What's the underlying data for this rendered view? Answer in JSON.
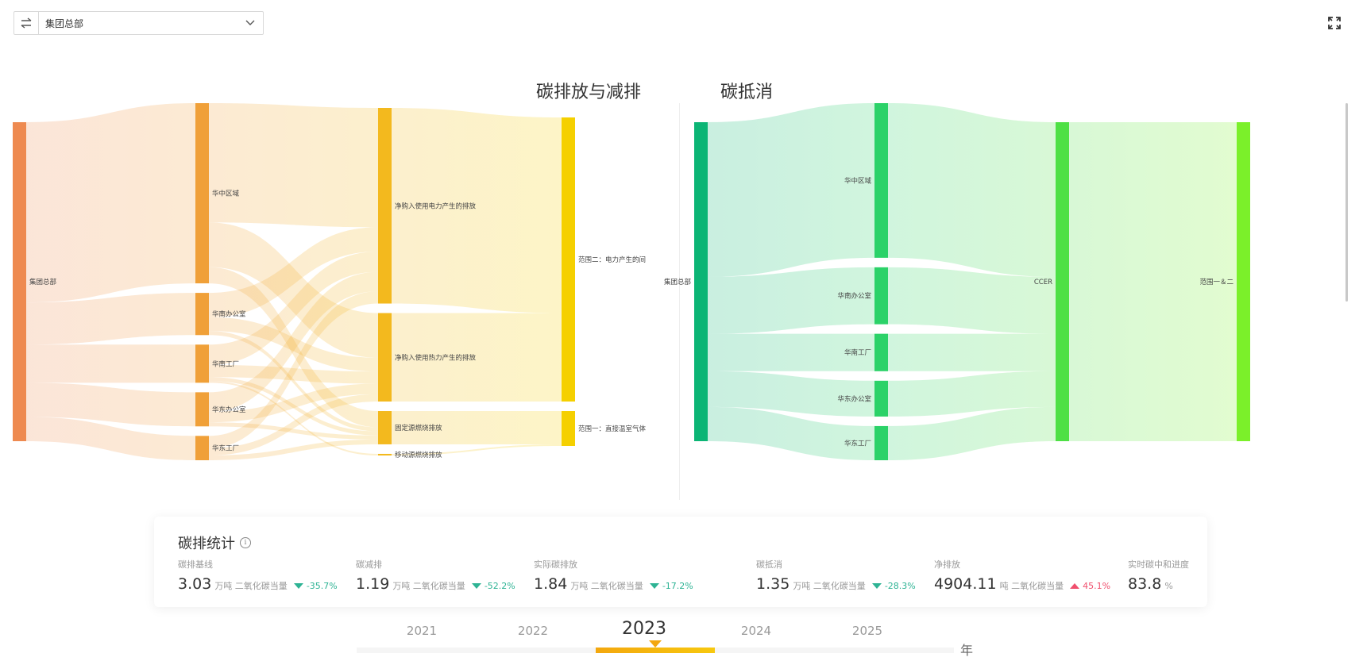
{
  "header": {
    "swap_icon": "swap-arrows-icon",
    "org_select": {
      "value": "集团总部",
      "icon": "chevron-down-icon"
    },
    "fullscreen_icon": "fullscreen-expand-icon"
  },
  "sections": {
    "emission_title": "碳排放与减排",
    "offset_title": "碳抵消"
  },
  "chart_data": [
    {
      "type": "sankey",
      "title": "碳排放与减排",
      "colors": {
        "level0": "#ee8a50",
        "level1": "#f0a038",
        "level2": "#f3b91e",
        "level3": "#f5d000"
      },
      "nodes": [
        {
          "id": "root",
          "label": "集团总部",
          "level": 0
        },
        {
          "id": "hz",
          "label": "华中区域",
          "level": 1
        },
        {
          "id": "hnb",
          "label": "华南办公室",
          "level": 1
        },
        {
          "id": "hng",
          "label": "华南工厂",
          "level": 1
        },
        {
          "id": "hdb",
          "label": "华东办公室",
          "level": 1
        },
        {
          "id": "hdg",
          "label": "华东工厂",
          "level": 1
        },
        {
          "id": "elec",
          "label": "净购入使用电力产生的排放",
          "level": 2
        },
        {
          "id": "heat",
          "label": "净购入使用热力产生的排放",
          "level": 2
        },
        {
          "id": "fix",
          "label": "固定源燃烧排放",
          "level": 2
        },
        {
          "id": "mob",
          "label": "移动源燃烧排放",
          "level": 2
        },
        {
          "id": "s2",
          "label": "范围二：电力产生的间",
          "level": 3
        },
        {
          "id": "s1",
          "label": "范围一：直接温室气体",
          "level": 3
        }
      ],
      "links": [
        {
          "source": "root",
          "target": "hz",
          "value": 222
        },
        {
          "source": "root",
          "target": "hnb",
          "value": 52
        },
        {
          "source": "root",
          "target": "hng",
          "value": 47
        },
        {
          "source": "root",
          "target": "hdb",
          "value": 42
        },
        {
          "source": "root",
          "target": "hdg",
          "value": 30
        },
        {
          "source": "hz",
          "target": "elec",
          "value": 147
        },
        {
          "source": "hz",
          "target": "heat",
          "value": 55
        },
        {
          "source": "hz",
          "target": "fix",
          "value": 20
        },
        {
          "source": "hnb",
          "target": "elec",
          "value": 30
        },
        {
          "source": "hnb",
          "target": "heat",
          "value": 17
        },
        {
          "source": "hnb",
          "target": "fix",
          "value": 5
        },
        {
          "source": "hng",
          "target": "elec",
          "value": 25
        },
        {
          "source": "hng",
          "target": "heat",
          "value": 15
        },
        {
          "source": "hng",
          "target": "fix",
          "value": 5
        },
        {
          "source": "hng",
          "target": "mob",
          "value": 2
        },
        {
          "source": "hdb",
          "target": "elec",
          "value": 24
        },
        {
          "source": "hdb",
          "target": "heat",
          "value": 13
        },
        {
          "source": "hdb",
          "target": "fix",
          "value": 5
        },
        {
          "source": "hdg",
          "target": "elec",
          "value": 15
        },
        {
          "source": "hdg",
          "target": "heat",
          "value": 9
        },
        {
          "source": "hdg",
          "target": "fix",
          "value": 6
        },
        {
          "source": "elec",
          "target": "s2",
          "value": 241
        },
        {
          "source": "heat",
          "target": "s2",
          "value": 109
        },
        {
          "source": "fix",
          "target": "s1",
          "value": 41
        },
        {
          "source": "mob",
          "target": "s1",
          "value": 2
        }
      ]
    },
    {
      "type": "sankey",
      "title": "碳抵消",
      "colors": {
        "level0": "#0bb575",
        "level1": "#2bd268",
        "level2": "#4ee045",
        "level3": "#7bf02a"
      },
      "nodes": [
        {
          "id": "root",
          "label": "集团总部",
          "level": 0
        },
        {
          "id": "hz",
          "label": "华中区域",
          "level": 1
        },
        {
          "id": "hnb",
          "label": "华南办公室",
          "level": 1
        },
        {
          "id": "hng",
          "label": "华南工厂",
          "level": 1
        },
        {
          "id": "hdb",
          "label": "华东办公室",
          "level": 1
        },
        {
          "id": "hdg",
          "label": "华东工厂",
          "level": 1
        },
        {
          "id": "ccer",
          "label": "CCER",
          "level": 2
        },
        {
          "id": "scope",
          "label": "范围一＆二",
          "level": 3
        }
      ],
      "links": [
        {
          "source": "root",
          "target": "hz",
          "value": 190
        },
        {
          "source": "root",
          "target": "hnb",
          "value": 70
        },
        {
          "source": "root",
          "target": "hng",
          "value": 46
        },
        {
          "source": "root",
          "target": "hdb",
          "value": 44
        },
        {
          "source": "root",
          "target": "hdg",
          "value": 42
        },
        {
          "source": "hz",
          "target": "ccer",
          "value": 190
        },
        {
          "source": "hnb",
          "target": "ccer",
          "value": 70
        },
        {
          "source": "hng",
          "target": "ccer",
          "value": 46
        },
        {
          "source": "hdb",
          "target": "ccer",
          "value": 44
        },
        {
          "source": "hdg",
          "target": "ccer",
          "value": 42
        },
        {
          "source": "ccer",
          "target": "scope",
          "value": 392
        }
      ]
    }
  ],
  "stats": {
    "title": "碳排统计",
    "info_icon": "info-circle-icon",
    "metrics": [
      {
        "label": "碳排基线",
        "value": "3.03",
        "unit": "万吨 二氧化碳当量",
        "trend": "-35.7%",
        "direction": "down"
      },
      {
        "label": "碳减排",
        "value": "1.19",
        "unit": "万吨 二氧化碳当量",
        "trend": "-52.2%",
        "direction": "down"
      },
      {
        "label": "实际碳排放",
        "value": "1.84",
        "unit": "万吨 二氧化碳当量",
        "trend": "-17.2%",
        "direction": "down"
      },
      {
        "label": "碳抵消",
        "value": "1.35",
        "unit": "万吨 二氧化碳当量",
        "trend": "-28.3%",
        "direction": "down"
      },
      {
        "label": "净排放",
        "value": "4904.11",
        "unit": "吨 二氧化碳当量",
        "trend": "45.1%",
        "direction": "up"
      },
      {
        "label": "实时碳中和进度",
        "value": "83.8",
        "unit": "%",
        "trend": "",
        "direction": ""
      }
    ],
    "trend_colors": {
      "down": "#2eb394",
      "up": "#f0506e"
    }
  },
  "timeline": {
    "years": [
      "2021",
      "2022",
      "2023",
      "2024",
      "2025"
    ],
    "selected": "2023",
    "unit": "年"
  }
}
